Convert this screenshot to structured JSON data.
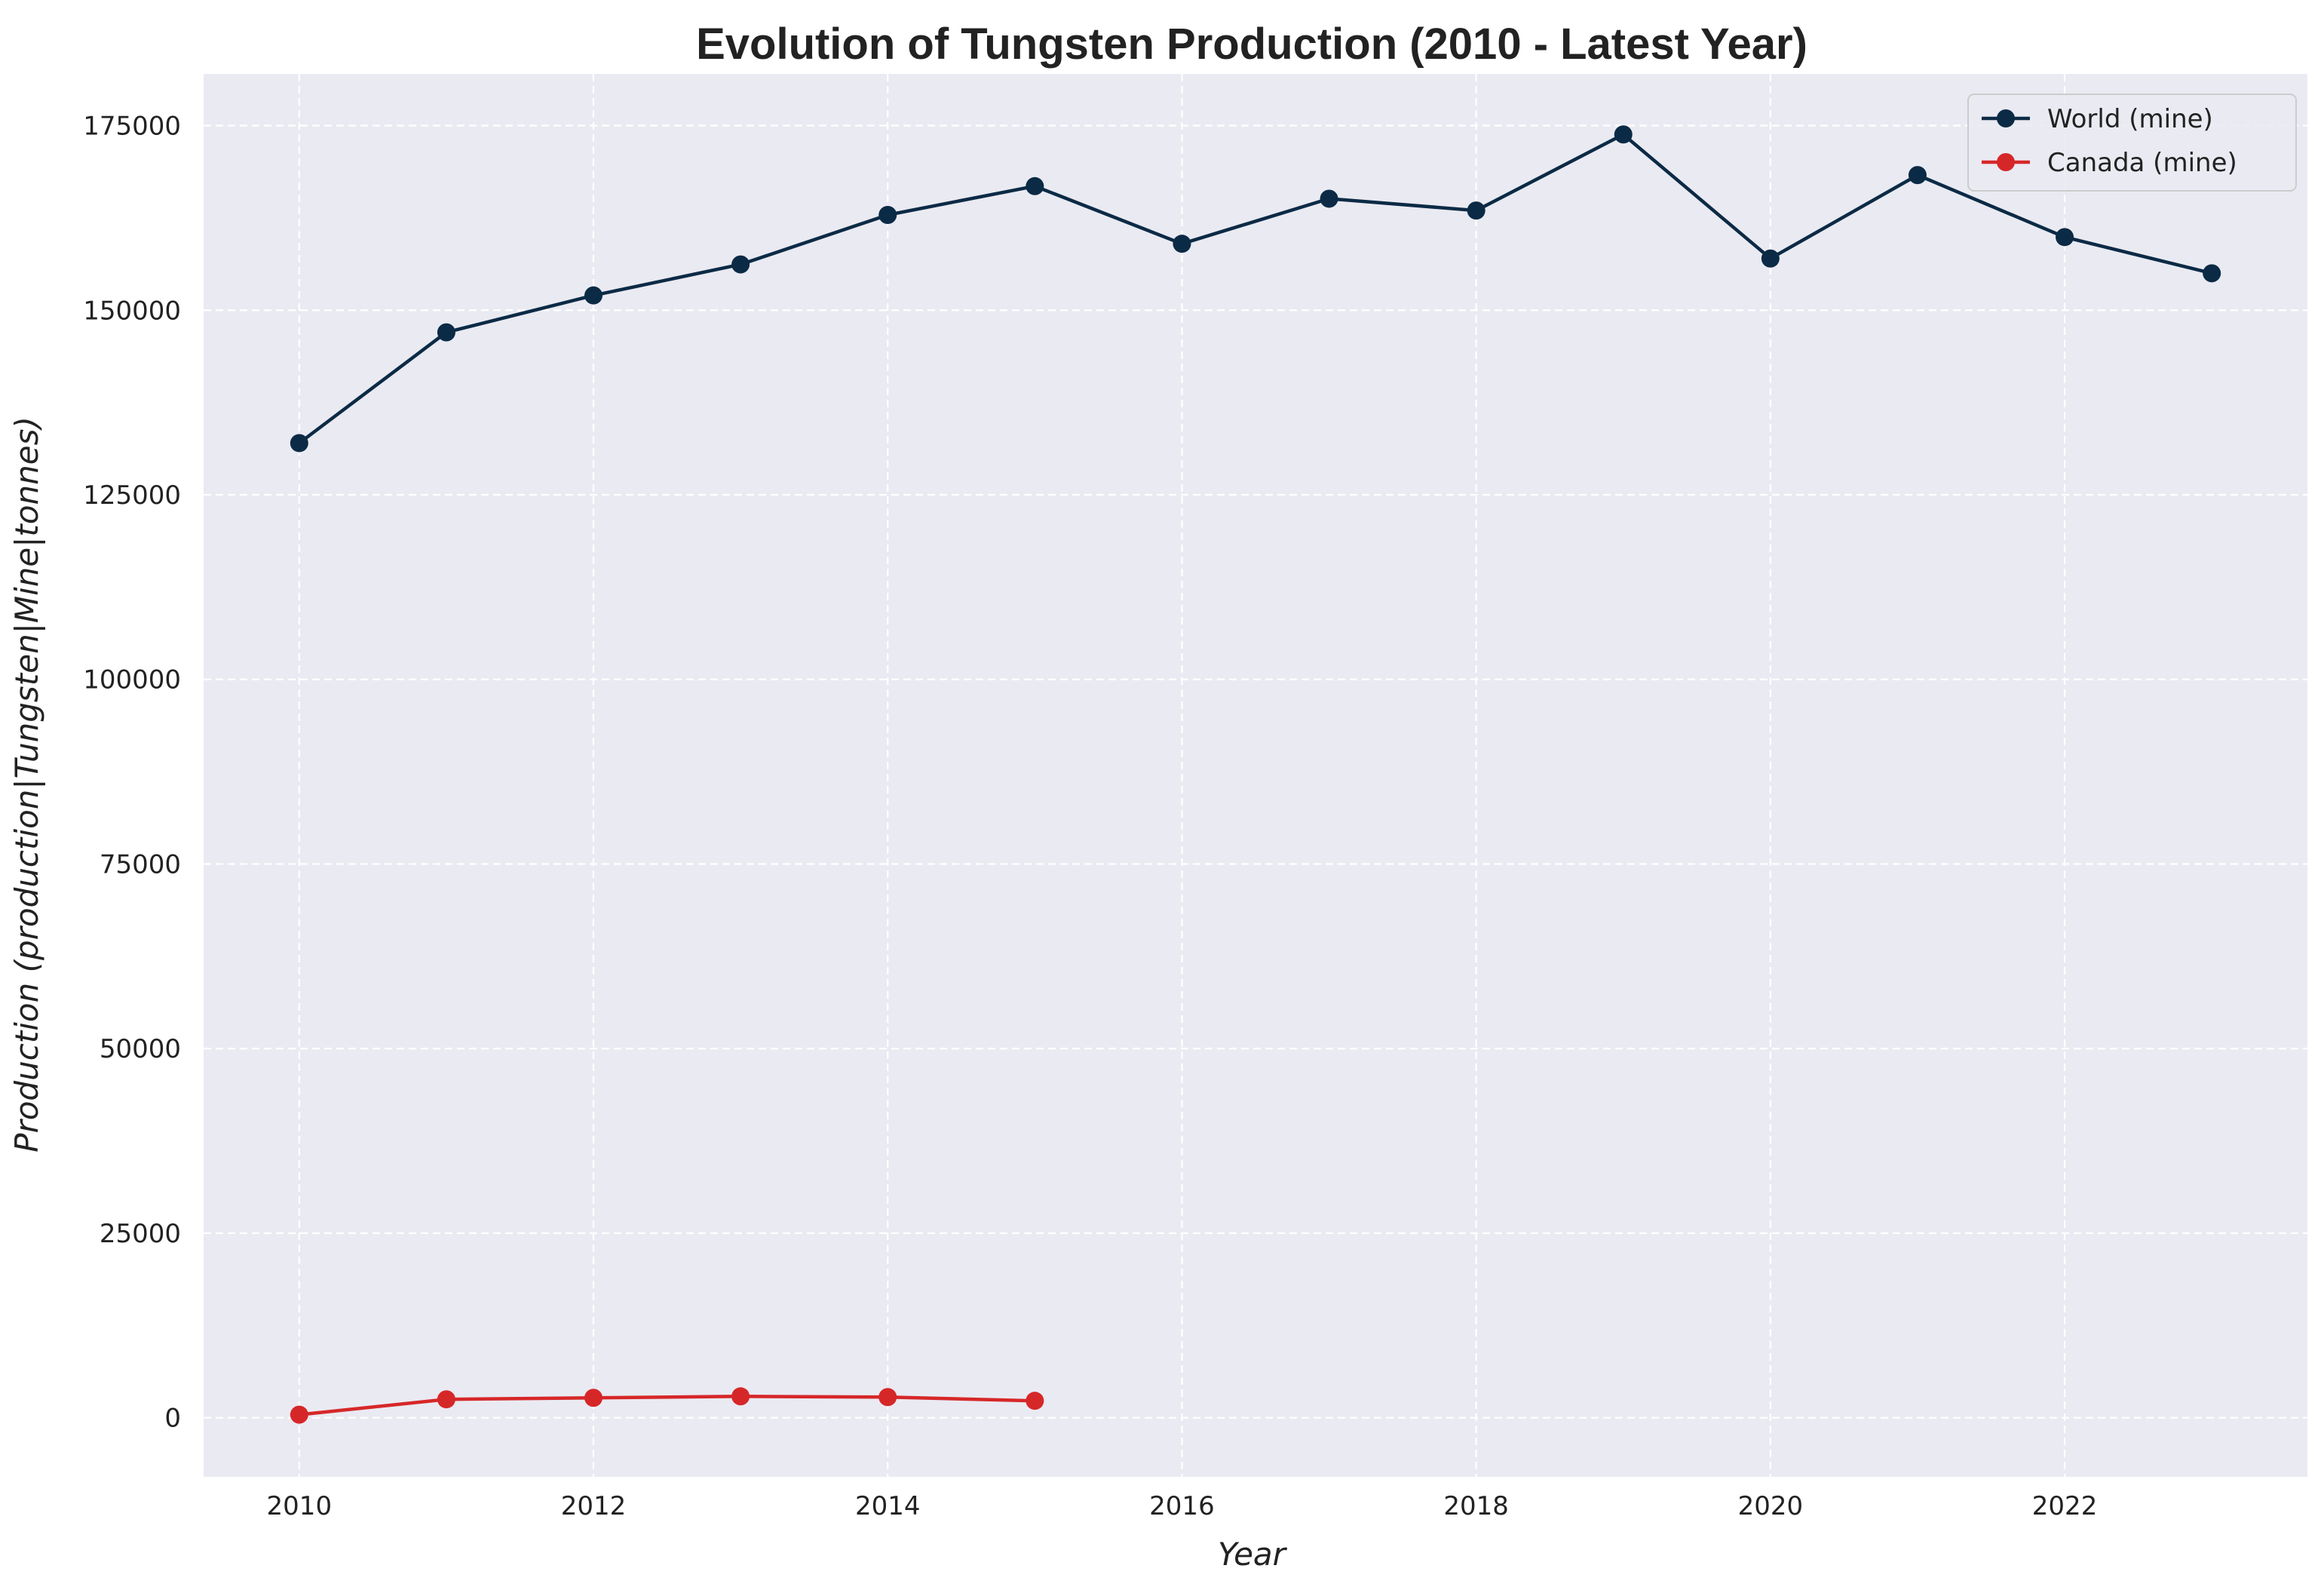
{
  "chart_data": {
    "type": "line",
    "title": "Evolution of Tungsten Production (2010 - Latest Year)",
    "xlabel": "Year",
    "ylabel": "Production (production|Tungsten|Mine|tonnes)",
    "xlim": [
      2009.35,
      2023.65
    ],
    "ylim": [
      -8000,
      182000
    ],
    "x_ticks": [
      2010,
      2012,
      2014,
      2016,
      2018,
      2020,
      2022
    ],
    "y_ticks": [
      0,
      25000,
      50000,
      75000,
      100000,
      125000,
      150000,
      175000
    ],
    "grid": true,
    "legend_position": "top-right",
    "series": [
      {
        "name": "World (mine)",
        "color": "#0b2a45",
        "x": [
          2010,
          2011,
          2012,
          2013,
          2014,
          2015,
          2016,
          2017,
          2018,
          2019,
          2020,
          2021,
          2022,
          2023
        ],
        "values": [
          132000,
          147000,
          152000,
          156200,
          162900,
          166800,
          159000,
          165100,
          163500,
          173800,
          157000,
          168300,
          159900,
          155000
        ]
      },
      {
        "name": "Canada (mine)",
        "color": "#d62728",
        "x": [
          2010,
          2011,
          2012,
          2013,
          2014,
          2015
        ],
        "values": [
          420,
          2500,
          2700,
          2900,
          2800,
          2300
        ]
      }
    ]
  }
}
